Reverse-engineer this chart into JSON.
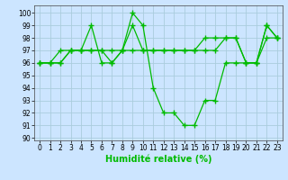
{
  "xlabel": "Humidité relative (%)",
  "bg_color": "#cce5ff",
  "grid_color": "#aaccdd",
  "line_color": "#00bb00",
  "xlim": [
    -0.5,
    23.5
  ],
  "ylim": [
    89.8,
    100.6
  ],
  "yticks": [
    90,
    91,
    92,
    93,
    94,
    95,
    96,
    97,
    98,
    99,
    100
  ],
  "xticks": [
    0,
    1,
    2,
    3,
    4,
    5,
    6,
    7,
    8,
    9,
    10,
    11,
    12,
    13,
    14,
    15,
    16,
    17,
    18,
    19,
    20,
    21,
    22,
    23
  ],
  "series": [
    [
      96,
      96,
      96,
      97,
      97,
      97,
      97,
      97,
      97,
      99,
      97,
      97,
      97,
      97,
      97,
      97,
      98,
      98,
      98,
      98,
      96,
      96,
      99,
      98
    ],
    [
      96,
      96,
      96,
      97,
      97,
      99,
      96,
      96,
      97,
      100,
      99,
      94,
      92,
      92,
      91,
      91,
      93,
      93,
      96,
      96,
      96,
      96,
      99,
      98
    ],
    [
      96,
      96,
      97,
      97,
      97,
      97,
      97,
      96,
      97,
      97,
      97,
      97,
      97,
      97,
      97,
      97,
      97,
      97,
      98,
      98,
      96,
      96,
      98,
      98
    ]
  ],
  "tick_fontsize": 5.5,
  "xlabel_fontsize": 7.0,
  "linewidth": 0.9,
  "markersize": 4,
  "grid_linewidth": 0.6
}
